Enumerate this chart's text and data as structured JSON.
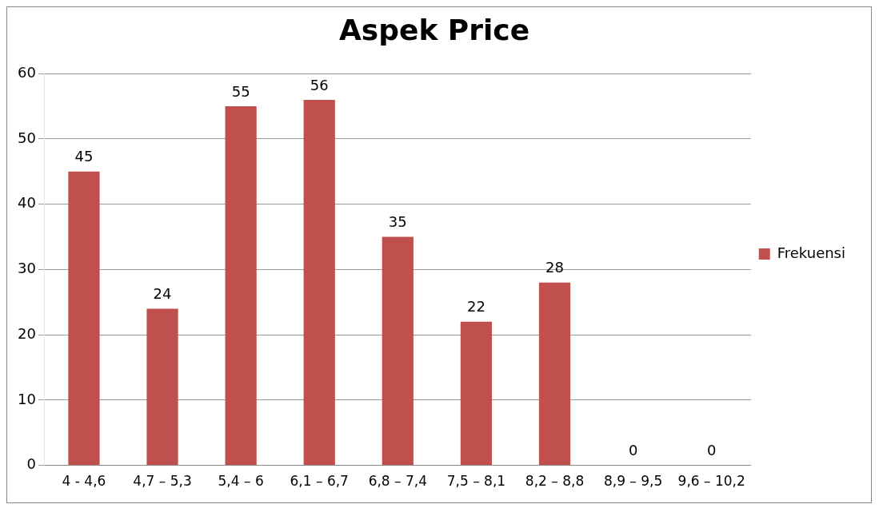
{
  "chart_data": {
    "type": "bar",
    "title": "Aspek Price",
    "categories": [
      "4 - 4,6",
      "4,7 – 5,3",
      "5,4 – 6",
      "6,1 – 6,7",
      "6,8 – 7,4",
      "7,5 – 8,1",
      "8,2 – 8,8",
      "8,9 – 9,5",
      "9,6 – 10,2"
    ],
    "series": [
      {
        "name": "Frekuensi",
        "color": "#c0504d",
        "values": [
          45,
          24,
          55,
          56,
          35,
          22,
          28,
          0,
          0
        ]
      }
    ],
    "ylim": [
      0,
      60
    ],
    "yticks": [
      0,
      10,
      20,
      30,
      40,
      50,
      60
    ],
    "grid": "y",
    "legend": "right",
    "data_labels": true
  }
}
